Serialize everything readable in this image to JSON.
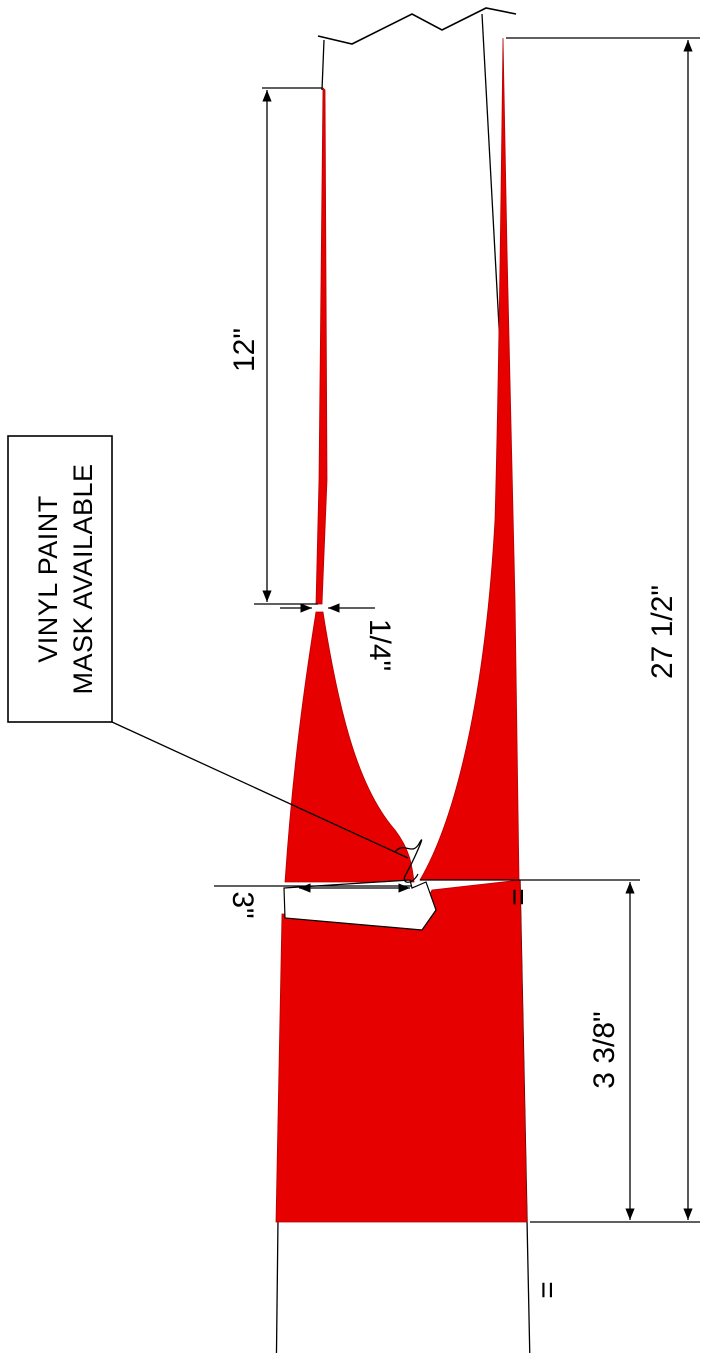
{
  "callout": {
    "line1": "VINYL PAINT",
    "line2": "MASK AVAILABLE"
  },
  "dimensions": {
    "top_length": "12\"",
    "gap": "1/4\"",
    "overall": "27 1/2\"",
    "bottom_height": "3 3/8\"",
    "notch": "3\""
  },
  "marks": {
    "equal_upper": "=",
    "equal_lower": "="
  },
  "colors": {
    "paint": "#e60000",
    "line": "#000000"
  }
}
